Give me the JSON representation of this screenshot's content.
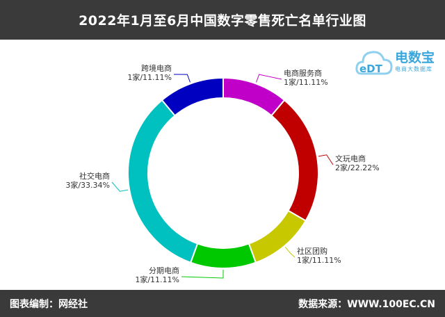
{
  "header": {
    "title": "2022年1月至6月中国数字零售死亡名单行业图"
  },
  "footer": {
    "left": "图表编制：网经社",
    "right": "数据来源：WWW.100EC.CN"
  },
  "logo": {
    "mark": "eDT",
    "name": "电数宝",
    "sub": "电商大数据库"
  },
  "chart_data": {
    "type": "pie",
    "donut": true,
    "categories": [
      "电商服务商",
      "文玩电商",
      "社区团购",
      "分期电商",
      "社交电商",
      "跨境电商"
    ],
    "values": [
      1,
      2,
      1,
      1,
      3,
      1
    ],
    "value_labels": [
      "1家/11.11%",
      "2家/22.22%",
      "1家/11.11%",
      "1家/11.11%",
      "3家/33.34%",
      "1家/11.11%"
    ],
    "colors": [
      "#c000c8",
      "#c00000",
      "#c8c800",
      "#00c800",
      "#00c0c0",
      "#0000c0"
    ]
  }
}
